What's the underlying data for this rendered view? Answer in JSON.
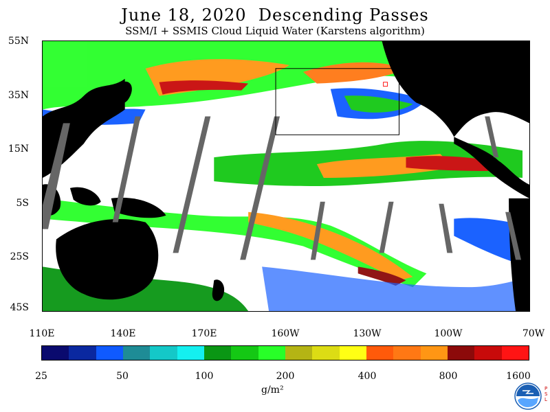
{
  "title": "June 18, 2020  Descending Passes",
  "subtitle": "SSM/I + SSMIS Cloud Liquid Water (Karstens algorithm)",
  "lat_labels": [
    "55N",
    "35N",
    "15N",
    "5S",
    "25S",
    "45S"
  ],
  "lon_labels": [
    "110E",
    "140E",
    "170E",
    "160W",
    "130W",
    "100W",
    "70W"
  ],
  "colorbar": {
    "colors": [
      "#0a0a6e",
      "#0a28a0",
      "#0f5aff",
      "#1e8c96",
      "#14c8c8",
      "#14f0f0",
      "#0a9614",
      "#14c814",
      "#28ff28",
      "#b4b414",
      "#dcdc14",
      "#ffff14",
      "#ff5a0a",
      "#ff7814",
      "#ff9614",
      "#8c0a0a",
      "#c80a0a",
      "#ff1414"
    ],
    "labels": [
      "25",
      "50",
      "100",
      "200",
      "400",
      "800",
      "1600"
    ]
  },
  "units": "g/m²",
  "logo": {
    "icon": "noaa-logo",
    "label": "PSL"
  }
}
